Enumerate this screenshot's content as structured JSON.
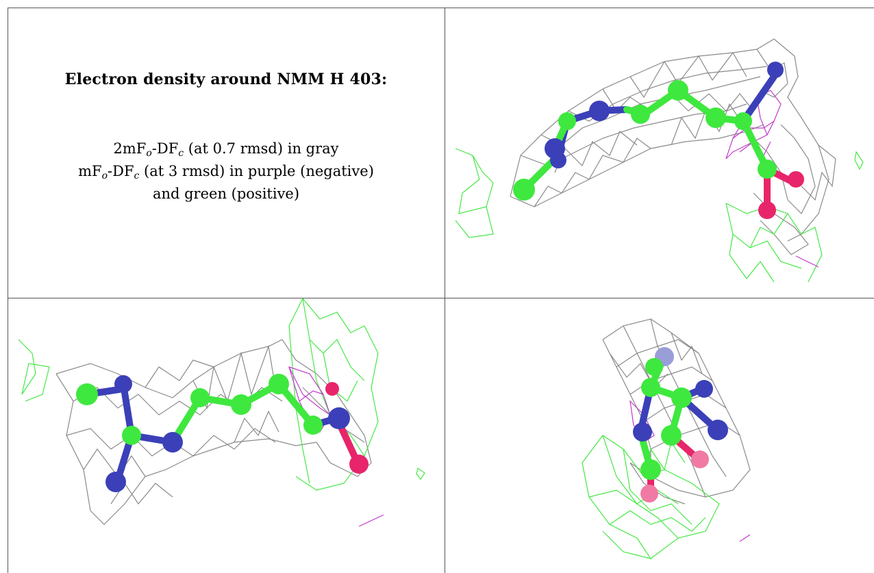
{
  "caption": {
    "title": "Electron density around NMM H 403:",
    "line1": {
      "a": "2mF",
      "b": "o",
      "c": "-DF",
      "d": "c",
      "e": " (at 0.7 rmsd) in gray"
    },
    "line2": {
      "a": "mF",
      "b": "o",
      "c": "-DF",
      "d": "c",
      "e": " (at 3 rmsd) in purple (negative)"
    },
    "line3": "and green (positive)"
  },
  "colors": {
    "carbon": "#3ee83e",
    "nitrogen": "#3b40b8",
    "oxygen": "#e8256a",
    "mesh_gray": "#8a8a8a",
    "mesh_green": "#45e845",
    "mesh_purple": "#c03cc8",
    "border": "#555555"
  }
}
